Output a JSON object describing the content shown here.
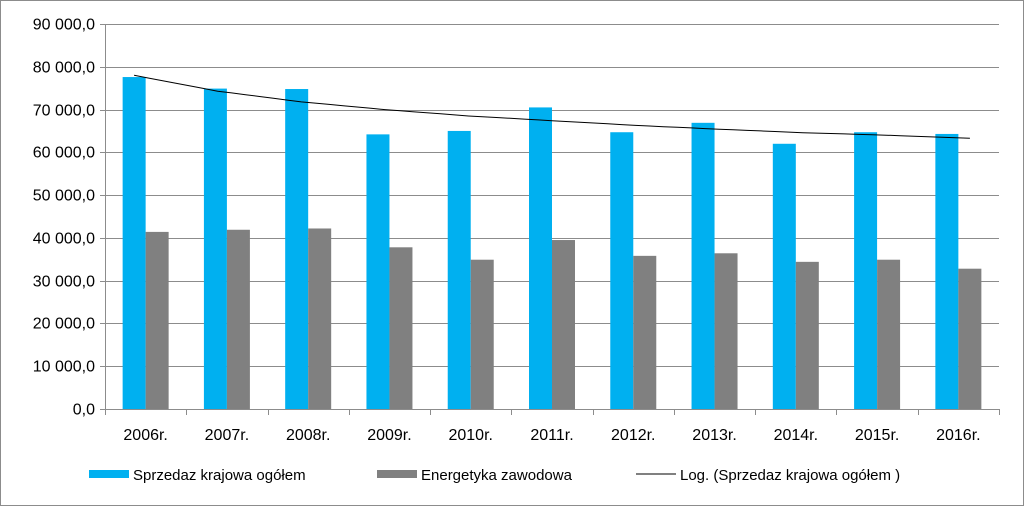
{
  "chart_data": {
    "type": "bar",
    "title": "",
    "xlabel": "",
    "ylabel": "",
    "ylim": [
      0,
      90000
    ],
    "yticks": [
      0,
      10000,
      20000,
      30000,
      40000,
      50000,
      60000,
      70000,
      80000,
      90000
    ],
    "ytick_labels": [
      "0,0",
      "10 000,0",
      "20 000,0",
      "30 000,0",
      "40 000,0",
      "50 000,0",
      "60 000,0",
      "70 000,0",
      "80 000,0",
      "90 000,0"
    ],
    "grid": true,
    "legend_position": "bottom",
    "categories": [
      "2006r.",
      "2007r.",
      "2008r.",
      "2009r.",
      "2010r.",
      "2011r.",
      "2012r.",
      "2013r.",
      "2014r.",
      "2015r.",
      "2016r."
    ],
    "series": [
      {
        "name": "Sprzedaz krajowa ogółem",
        "color": "#00b0f0",
        "values": [
          77600,
          74900,
          74800,
          64200,
          65000,
          70500,
          64700,
          66900,
          62000,
          64700,
          64300
        ]
      },
      {
        "name": "Energetyka zawodowa",
        "color": "#808080",
        "values": [
          41400,
          41900,
          42200,
          37800,
          34900,
          39500,
          35800,
          36400,
          34400,
          34900,
          32800
        ]
      }
    ],
    "trendline": {
      "name": "Log. (Sprzedaz krajowa ogółem )",
      "type": "logarithmic",
      "color": "#000000",
      "values": [
        78000,
        74300,
        71800,
        70000,
        68500,
        67400,
        66300,
        65400,
        64600,
        64000,
        63300
      ]
    }
  }
}
